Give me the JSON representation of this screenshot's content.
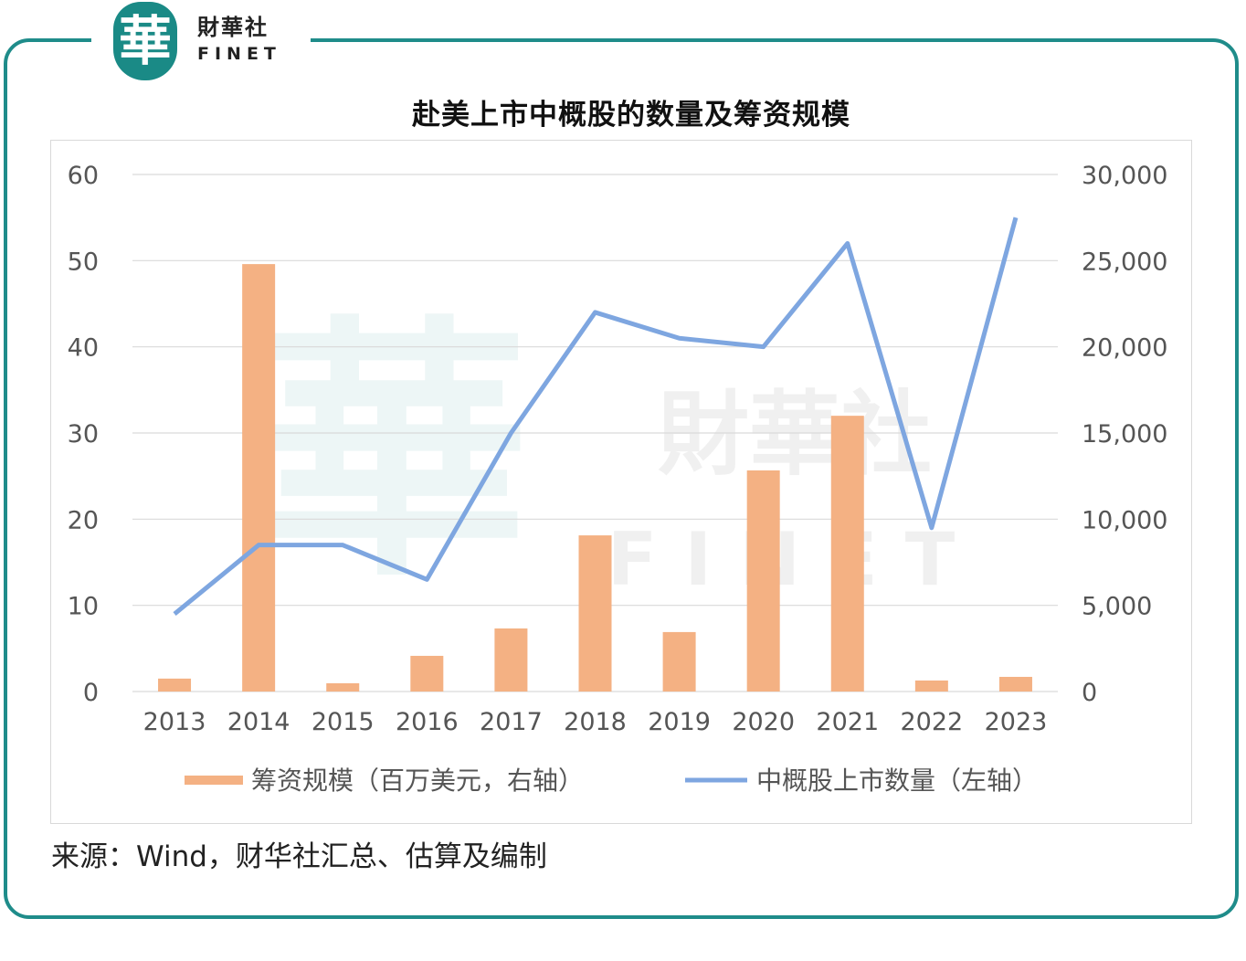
{
  "logo": {
    "cn": "財華社",
    "en": "FINET",
    "mark": "華"
  },
  "source": "来源：Wind，财华社汇总、估算及编制",
  "chart_data": {
    "type": "bar+line",
    "title": "赴美上市中概股的数量及筹资规模",
    "categories": [
      "2013",
      "2014",
      "2015",
      "2016",
      "2017",
      "2018",
      "2019",
      "2020",
      "2021",
      "2022",
      "2023"
    ],
    "series": [
      {
        "name": "筹资规模（百万美元，右轴）",
        "type": "bar",
        "axis": "right",
        "color": "#f4b183",
        "values": [
          750,
          24800,
          480,
          2070,
          3660,
          9060,
          3450,
          12830,
          16000,
          640,
          850
        ]
      },
      {
        "name": "中概股上市数量（左轴）",
        "type": "line",
        "axis": "left",
        "color": "#7ea6e0",
        "values": [
          9,
          17,
          17,
          13,
          30,
          44,
          41,
          40,
          52,
          19,
          55
        ]
      }
    ],
    "left_axis": {
      "ylim": [
        0,
        60
      ],
      "ticks": [
        "0",
        "10",
        "20",
        "30",
        "40",
        "50",
        "60"
      ]
    },
    "right_axis": {
      "ylim": [
        0,
        30000
      ],
      "ticks": [
        "0",
        "5,000",
        "10,000",
        "15,000",
        "20,000",
        "25,000",
        "30,000"
      ]
    },
    "legend": "bottom",
    "grid": true
  }
}
